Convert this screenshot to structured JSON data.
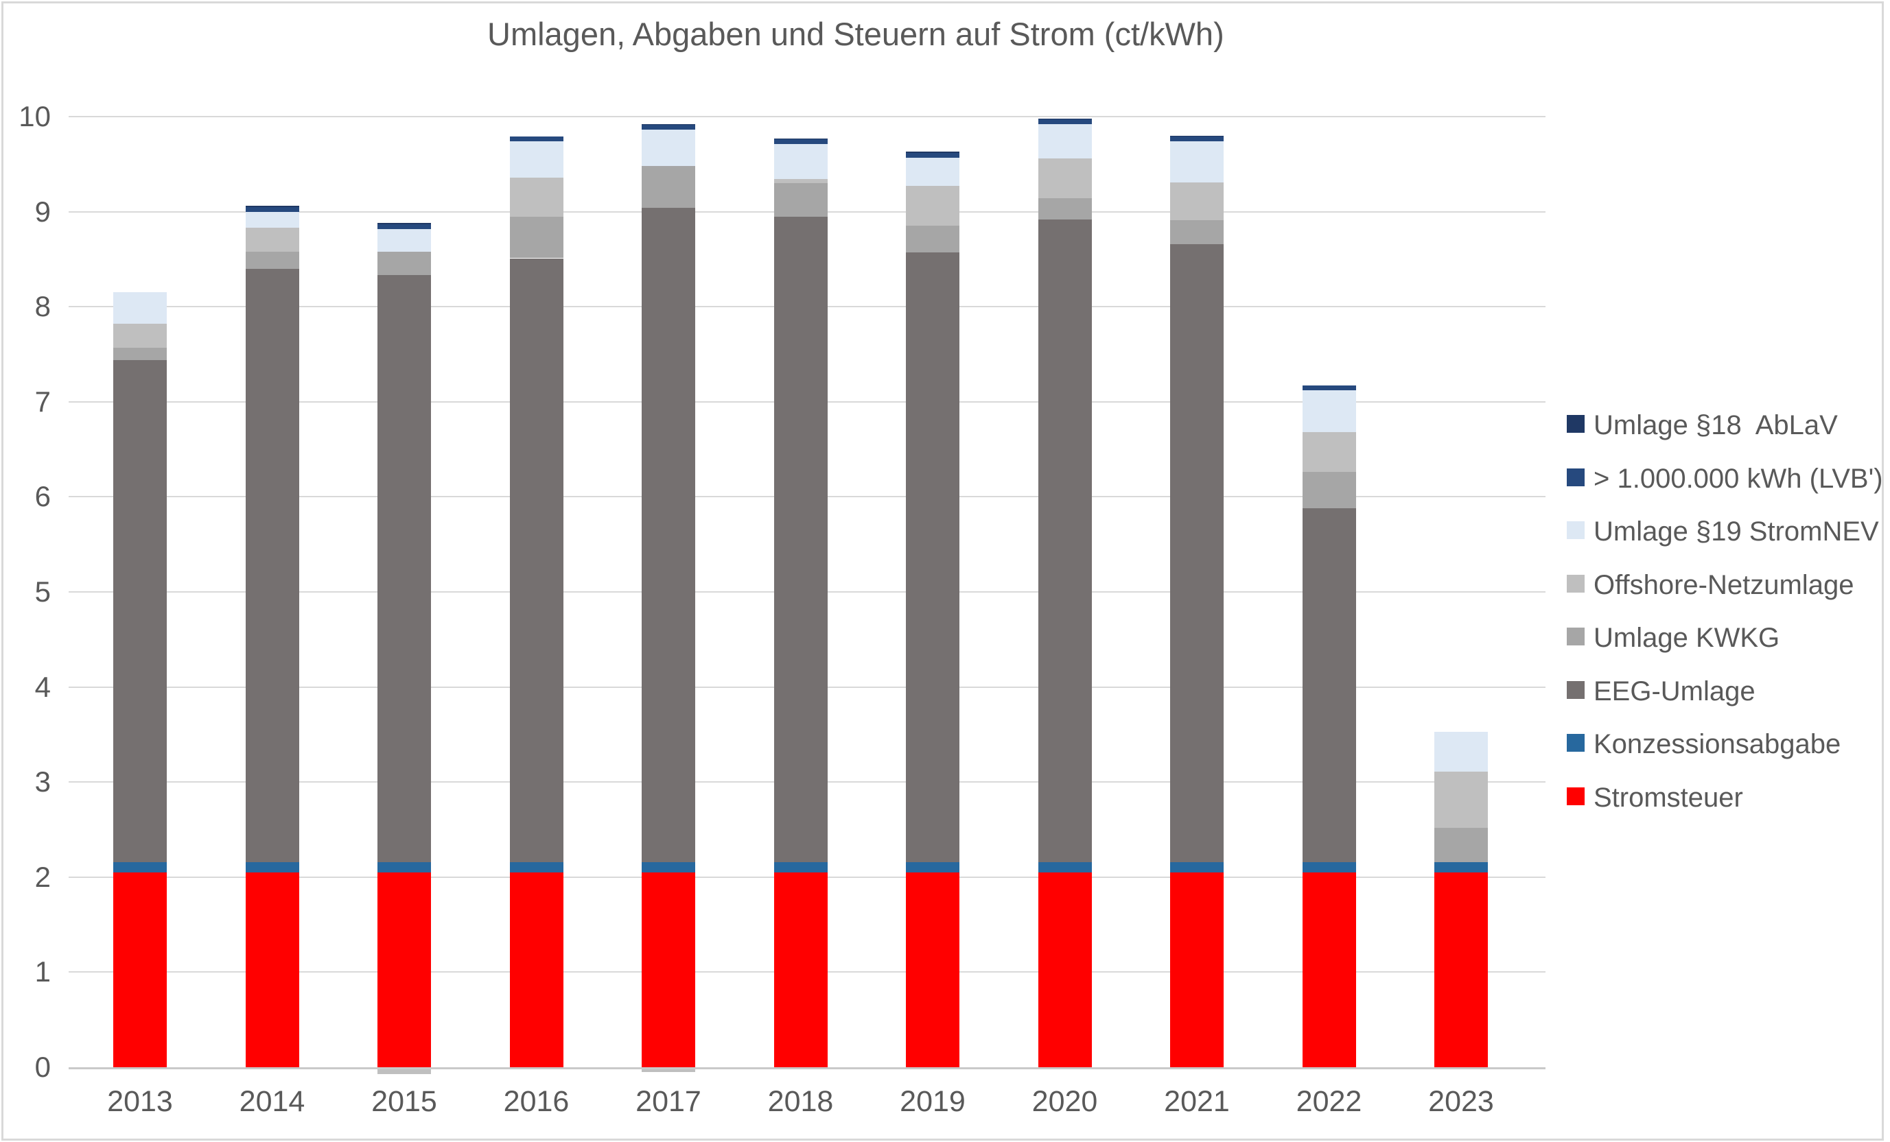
{
  "title": "Umlagen, Abgaben und Steuern auf Strom (ct/kWh)",
  "colors": {
    "text": "#595959",
    "gridline": "#D9D9D9",
    "zero_line": "#C9C9C9",
    "frame_border": "#D9D9D9",
    "background": "#FFFFFF"
  },
  "y_axis": {
    "min": 0,
    "max": 10,
    "step": 1,
    "tick_labels": [
      "0",
      "1",
      "2",
      "3",
      "4",
      "5",
      "6",
      "7",
      "8",
      "9",
      "10"
    ]
  },
  "legend": {
    "position": "right",
    "items": [
      {
        "label": "Umlage §18  AbLaV",
        "color": "#1F3864",
        "swatch": "ablav-swatch"
      },
      {
        "label": "> 1.000.000 kWh (LVB')",
        "color": "#26497E",
        "swatch": "lvb-swatch"
      },
      {
        "label": "Umlage §19 StromNEV",
        "color": "#DDE8F4",
        "swatch": "s19-swatch"
      },
      {
        "label": "Offshore-Netzumlage",
        "color": "#BFBFBF",
        "swatch": "offshore-swatch"
      },
      {
        "label": "Umlage KWKG",
        "color": "#A6A6A6",
        "swatch": "kwkg-swatch"
      },
      {
        "label": "EEG-Umlage",
        "color": "#757070",
        "swatch": "eeg-swatch"
      },
      {
        "label": "Konzessionsabgabe",
        "color": "#27689E",
        "swatch": "konzession-swatch"
      },
      {
        "label": "Stromsteuer",
        "color": "#FF0000",
        "swatch": "stromsteuer-swatch"
      }
    ]
  },
  "chart_data": {
    "type": "bar",
    "stacked": true,
    "title": "Umlagen, Abgaben und Steuern auf Strom (ct/kWh)",
    "xlabel": "",
    "ylabel": "ct/kWh",
    "ylim": [
      0,
      10
    ],
    "grid": true,
    "legend_position": "right",
    "categories": [
      "2013",
      "2014",
      "2015",
      "2016",
      "2017",
      "2018",
      "2019",
      "2020",
      "2021",
      "2022",
      "2023"
    ],
    "series": [
      {
        "name": "Stromsteuer",
        "color": "#FF0000",
        "values": [
          2.05,
          2.05,
          2.05,
          2.05,
          2.05,
          2.05,
          2.05,
          2.05,
          2.05,
          2.05,
          2.05
        ]
      },
      {
        "name": "Konzessionsabgabe",
        "color": "#27689E",
        "values": [
          0.11,
          0.11,
          0.11,
          0.11,
          0.11,
          0.11,
          0.11,
          0.11,
          0.11,
          0.11,
          0.11
        ]
      },
      {
        "name": "EEG-Umlage",
        "color": "#757070",
        "values": [
          5.28,
          6.24,
          6.17,
          6.35,
          6.88,
          6.79,
          6.41,
          6.76,
          6.5,
          3.72,
          0
        ]
      },
      {
        "name": "Umlage KWKG",
        "color": "#A6A6A6",
        "values": [
          0.13,
          0.18,
          0.25,
          0.44,
          0.44,
          0.35,
          0.28,
          0.22,
          0.25,
          0.38,
          0.36
        ]
      },
      {
        "name": "Offshore-Netzumlage",
        "color": "#BFBFBF",
        "values": [
          0.25,
          0.25,
          -0.05,
          0.41,
          -0.03,
          0.04,
          0.42,
          0.42,
          0.4,
          0.42,
          0.59
        ]
      },
      {
        "name": "Umlage §19 StromNEV",
        "color": "#DDE8F4",
        "values": [
          0.33,
          0.17,
          0.24,
          0.38,
          0.38,
          0.37,
          0.3,
          0.36,
          0.43,
          0.44,
          0.42
        ]
      },
      {
        "name": "> 1.000.000 kWh (LVB')",
        "color": "#26497E",
        "values": [
          0,
          0.05,
          0.05,
          0.05,
          0.05,
          0.05,
          0.05,
          0.05,
          0.05,
          0.05,
          0
        ]
      },
      {
        "name": "Umlage §18  AbLaV",
        "color": "#1F3864",
        "values": [
          0,
          0.015,
          0.01,
          0,
          0.01,
          0.01,
          0.01,
          0.01,
          0.01,
          0,
          0
        ]
      }
    ],
    "totals": [
      8.15,
      9.07,
      8.88,
      9.79,
      9.92,
      9.77,
      9.63,
      9.98,
      9.8,
      7.17,
      3.53
    ],
    "note_negative_values": "Offshore-Netzumlage 2015 und 2017 negativ (unter der Nulllinie dargestellt)"
  }
}
